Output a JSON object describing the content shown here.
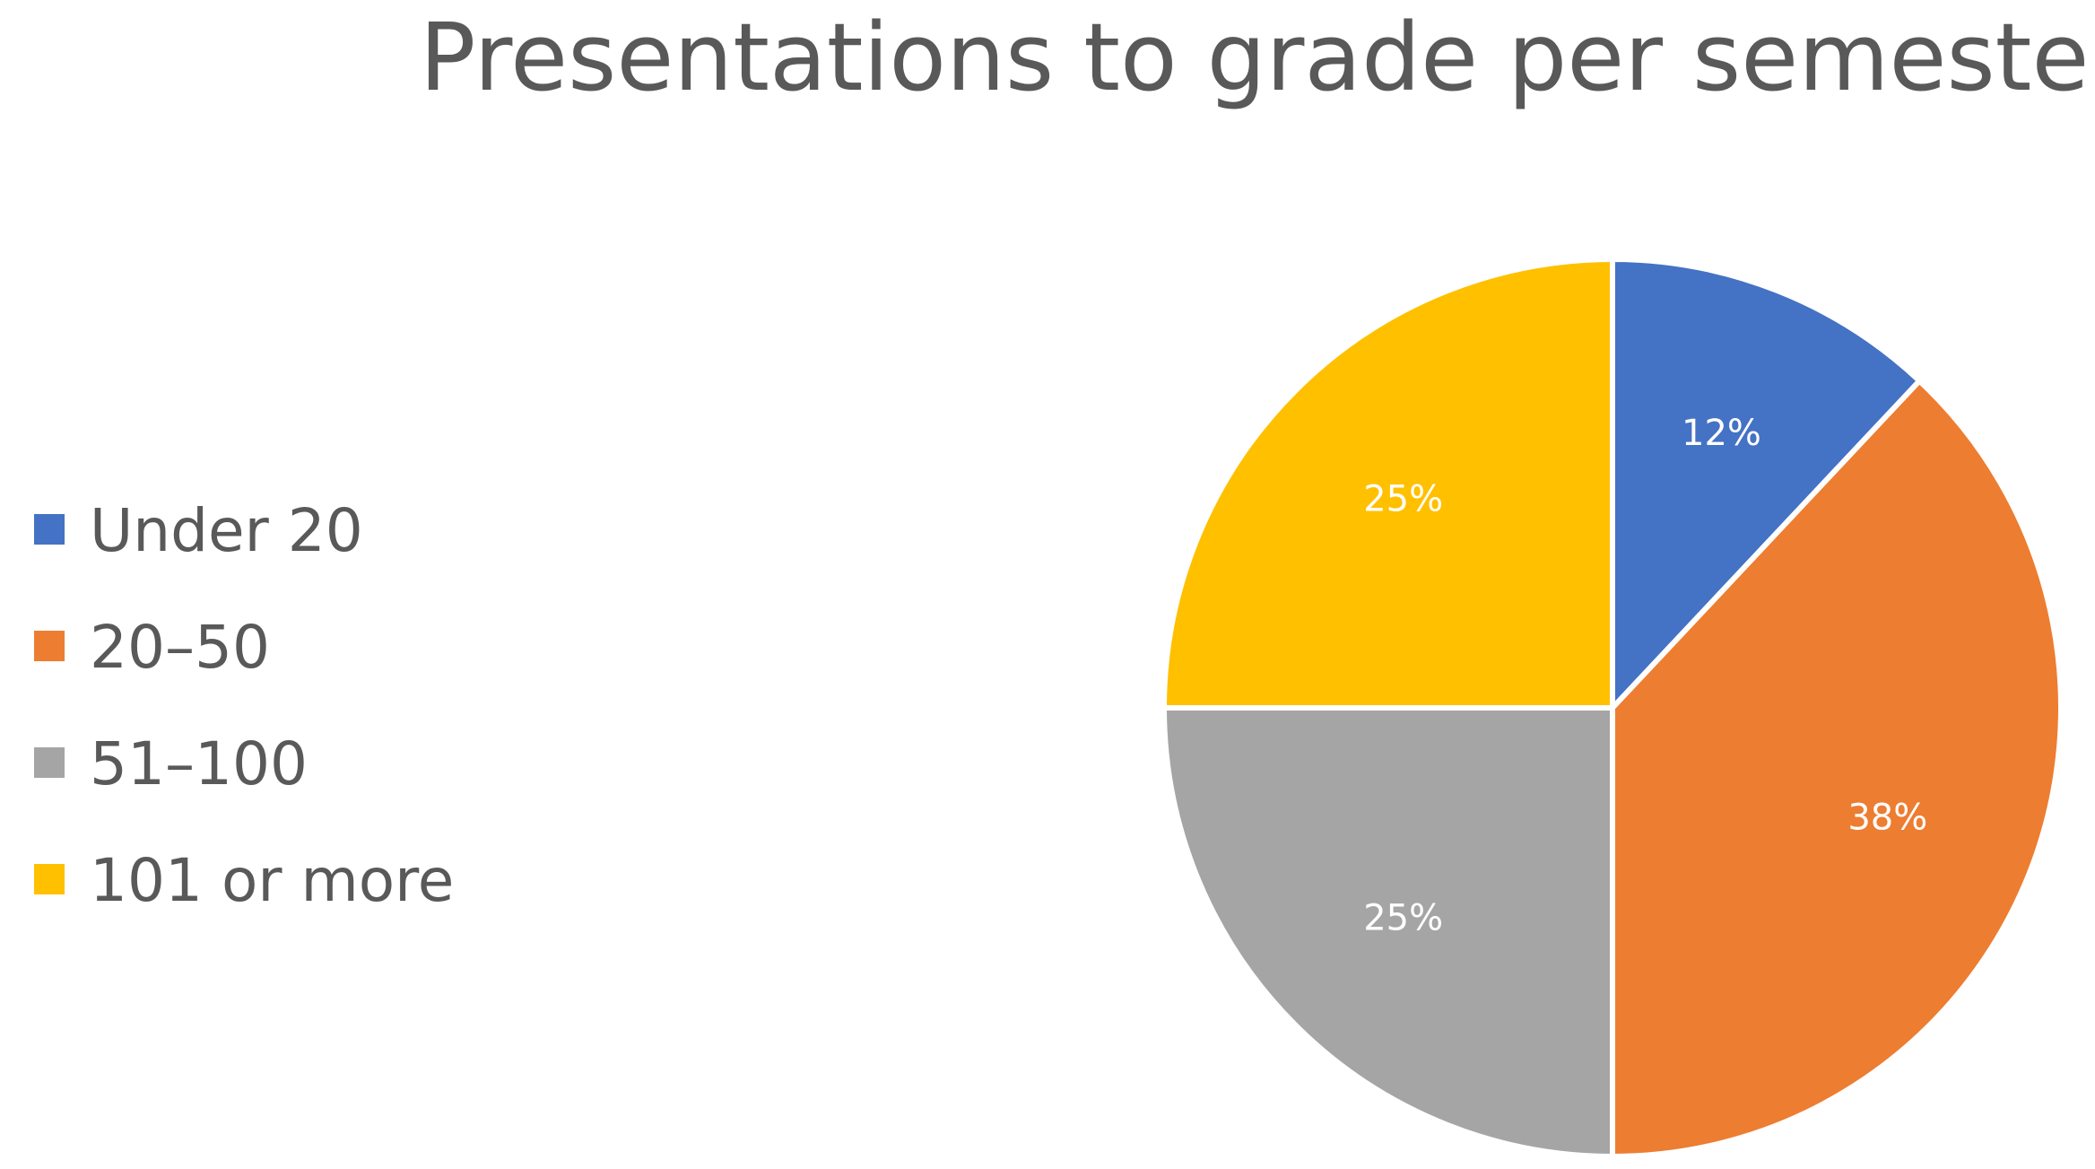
{
  "chart_data": {
    "type": "pie",
    "title": "Presentations to grade per semester",
    "categories": [
      "Under 20",
      "20–50",
      "51–100",
      "101 or more"
    ],
    "values": [
      12,
      38,
      25,
      25
    ],
    "data_labels": [
      "12%",
      "38%",
      "25%",
      "25%"
    ],
    "colors": [
      "#4472C4",
      "#ED7D31",
      "#A5A5A5",
      "#FFC000"
    ],
    "legend_position": "left",
    "start_angle": "12 o'clock, clockwise"
  }
}
